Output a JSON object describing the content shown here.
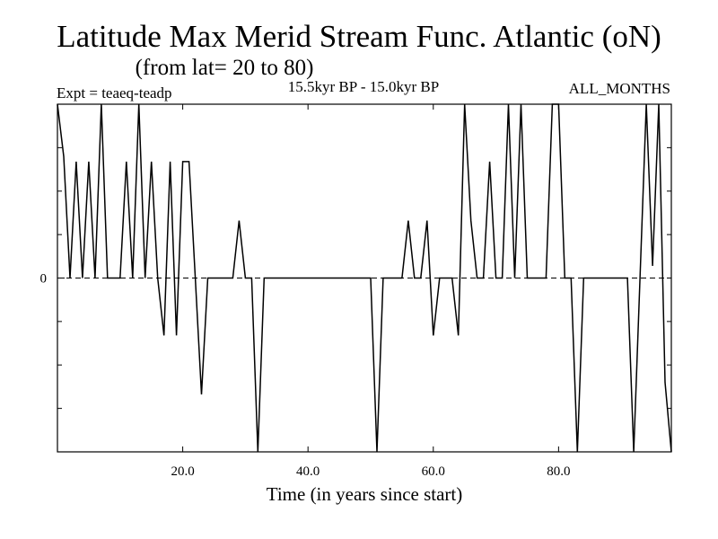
{
  "chart_data": {
    "type": "line",
    "title": "Latitude Max Merid Stream Func. Atlantic (oN)",
    "subtitle": "(from lat= 20 to 80)",
    "expt_label": "Expt = teaeq-teadp",
    "period_label": "15.5kyr BP - 15.0kyr BP",
    "months_label": "ALL_MONTHS",
    "xlabel": "Time (in years since start)",
    "ylabel": "",
    "xlim": [
      0,
      98
    ],
    "ylim": [
      -1.0,
      1.0
    ],
    "x_ticks": [
      20,
      40,
      60,
      80
    ],
    "x_tick_labels": [
      "20.0",
      "40.0",
      "60.0",
      "80.0"
    ],
    "y_ticks": [
      0
    ],
    "y_tick_labels": [
      "0"
    ],
    "series": [
      {
        "name": "max merid stream func",
        "x": [
          0,
          1,
          2,
          3,
          4,
          5,
          6,
          7,
          8,
          9,
          10,
          11,
          12,
          13,
          14,
          15,
          16,
          17,
          18,
          19,
          20,
          21,
          22,
          23,
          24,
          25,
          26,
          27,
          28,
          29,
          30,
          31,
          32,
          33,
          34,
          35,
          36,
          37,
          38,
          39,
          40,
          41,
          42,
          43,
          44,
          45,
          46,
          47,
          48,
          49,
          50,
          51,
          52,
          53,
          54,
          55,
          56,
          57,
          58,
          59,
          60,
          61,
          62,
          63,
          64,
          65,
          66,
          67,
          68,
          69,
          70,
          71,
          72,
          73,
          74,
          75,
          76,
          77,
          78,
          79,
          80,
          81,
          82,
          83,
          84,
          85,
          86,
          87,
          88,
          89,
          90,
          91,
          92,
          93,
          94,
          95,
          96,
          97,
          98
        ],
        "y": [
          1.0,
          0.7,
          0.0,
          0.67,
          0.0,
          0.67,
          0.0,
          1.0,
          0.0,
          0.0,
          0.0,
          0.67,
          0.0,
          1.0,
          0.0,
          0.67,
          0.0,
          -0.33,
          0.67,
          -0.33,
          0.67,
          0.67,
          0.0,
          -0.67,
          0.0,
          0.0,
          0.0,
          0.0,
          0.0,
          0.33,
          0.0,
          0.0,
          -1.0,
          0.0,
          0.0,
          0.0,
          0.0,
          0.0,
          0.0,
          0.0,
          0.0,
          0.0,
          0.0,
          0.0,
          0.0,
          0.0,
          0.0,
          0.0,
          0.0,
          0.0,
          0.0,
          -1.0,
          0.0,
          0.0,
          0.0,
          0.0,
          0.33,
          0.0,
          0.0,
          0.33,
          -0.33,
          0.0,
          0.0,
          0.0,
          -0.33,
          1.0,
          0.33,
          0.0,
          0.0,
          0.67,
          0.0,
          0.0,
          1.0,
          0.0,
          1.0,
          0.0,
          0.0,
          0.0,
          0.0,
          1.0,
          1.0,
          0.0,
          0.0,
          -1.0,
          0.0,
          0.0,
          0.0,
          0.0,
          0.0,
          0.0,
          0.0,
          0.0,
          -1.0,
          0.0,
          1.0,
          0.07,
          1.0,
          -0.6,
          -1.0
        ]
      }
    ]
  }
}
